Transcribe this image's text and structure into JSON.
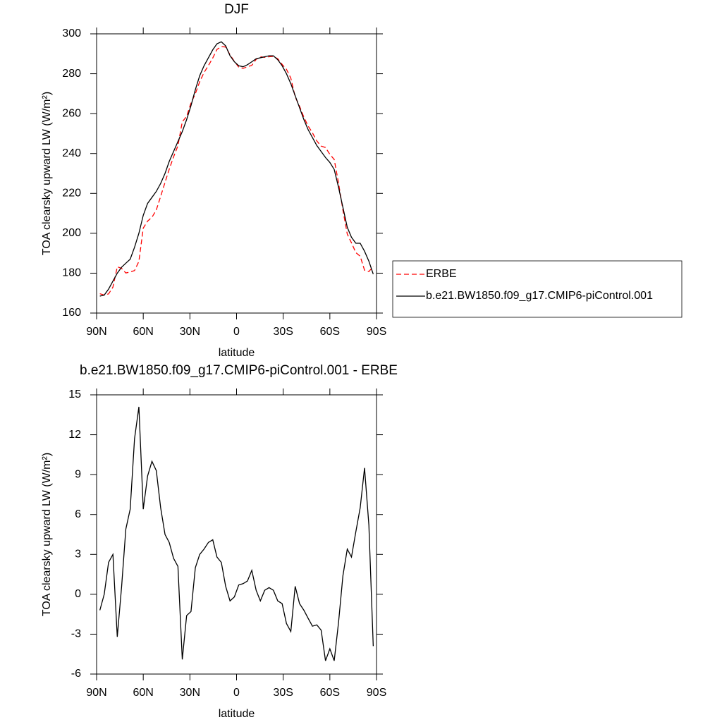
{
  "chart_data": [
    {
      "type": "line",
      "title": "DJF",
      "xlabel": "latitude",
      "ylabel": "TOA clearsky upward LW (W/m²)",
      "x": [
        87.9,
        85.1,
        82.3,
        79.5,
        76.7,
        73.9,
        71.2,
        68.4,
        65.6,
        62.8,
        60.0,
        57.2,
        54.4,
        51.6,
        48.8,
        46.0,
        43.3,
        40.5,
        37.7,
        34.9,
        32.1,
        29.3,
        26.5,
        23.7,
        20.9,
        18.1,
        15.3,
        12.6,
        9.8,
        7.0,
        4.2,
        1.4,
        -1.4,
        -4.2,
        -7.0,
        -9.8,
        -12.6,
        -15.3,
        -18.1,
        -20.9,
        -23.7,
        -26.5,
        -29.3,
        -32.1,
        -34.9,
        -37.7,
        -40.5,
        -43.3,
        -46.0,
        -48.8,
        -51.6,
        -54.4,
        -57.2,
        -60.0,
        -62.8,
        -65.6,
        -68.4,
        -71.2,
        -73.9,
        -76.7,
        -79.5,
        -82.3,
        -85.1,
        -87.9
      ],
      "series": [
        {
          "name": "ERBE",
          "color": "#ff0000",
          "style": "dashed",
          "values": [
            169.7,
            169.0,
            169.6,
            173.0,
            183.2,
            182.4,
            180.1,
            180.6,
            181.3,
            185.9,
            202.6,
            206.1,
            208.0,
            211.7,
            218.5,
            225.5,
            232.1,
            238.3,
            243.9,
            255.9,
            258.6,
            265.3,
            270.0,
            276.0,
            280.6,
            284.1,
            287.9,
            292.2,
            293.6,
            293.4,
            289.5,
            286.2,
            283.3,
            282.7,
            283.5,
            284.2,
            287.2,
            288.5,
            288.2,
            288.5,
            288.7,
            287.5,
            284.7,
            282.2,
            277.8,
            268.4,
            263.7,
            258.2,
            253.8,
            250.4,
            246.3,
            243.7,
            243.0,
            239.6,
            237.0,
            225.1,
            211.6,
            199.6,
            195.2,
            190.3,
            188.5,
            181.5,
            180.8,
            183.4
          ]
        },
        {
          "name": "b.e21.BW1850.f09_g17.CMIP6-piControl.001",
          "color": "#000000",
          "style": "solid",
          "values": [
            168.5,
            169,
            172,
            176,
            180,
            183,
            185,
            187,
            193,
            200,
            209,
            215,
            218,
            221,
            225,
            230,
            236,
            241,
            246,
            251,
            257,
            264,
            272,
            279,
            284,
            288,
            292,
            295,
            296,
            294,
            289,
            286,
            284,
            283.5,
            284.5,
            286,
            287.5,
            288,
            288.5,
            289,
            289,
            287,
            284,
            280,
            275,
            269,
            263,
            257,
            252,
            248,
            244,
            241,
            238,
            235.5,
            232,
            223,
            213,
            203,
            198,
            195,
            195,
            191,
            186,
            179.5
          ]
        }
      ],
      "xlim": [
        90,
        -90
      ],
      "xticks": [
        {
          "value": 90,
          "label": "90N"
        },
        {
          "value": 60,
          "label": "60N"
        },
        {
          "value": 30,
          "label": "30N"
        },
        0,
        {
          "value": -30,
          "label": "30S"
        },
        {
          "value": -60,
          "label": "60S"
        },
        {
          "value": -90,
          "label": "90S"
        }
      ],
      "ylim": [
        160,
        300
      ],
      "yticks": [
        160,
        180,
        200,
        220,
        240,
        260,
        280,
        300
      ],
      "legend": "right"
    },
    {
      "type": "line",
      "title": "b.e21.BW1850.f09_g17.CMIP6-piControl.001 - ERBE",
      "xlabel": "latitude",
      "ylabel": "TOA clearsky upward LW (W/m²)",
      "x": [
        87.9,
        85.1,
        82.3,
        79.5,
        76.7,
        73.9,
        71.2,
        68.4,
        65.6,
        62.8,
        60.0,
        57.2,
        54.4,
        51.6,
        48.8,
        46.0,
        43.3,
        40.5,
        37.7,
        34.9,
        32.1,
        29.3,
        26.5,
        23.7,
        20.9,
        18.1,
        15.3,
        12.6,
        9.8,
        7.0,
        4.2,
        1.4,
        -1.4,
        -4.2,
        -7.0,
        -9.8,
        -12.6,
        -15.3,
        -18.1,
        -20.9,
        -23.7,
        -26.5,
        -29.3,
        -32.1,
        -34.9,
        -37.7,
        -40.5,
        -43.3,
        -46.0,
        -48.8,
        -51.6,
        -54.4,
        -57.2,
        -60.0,
        -62.8,
        -65.6,
        -68.4,
        -71.2,
        -73.9,
        -76.7,
        -79.5,
        -82.3,
        -85.1,
        -87.9
      ],
      "values": [
        -1.2,
        0,
        2.4,
        3.0,
        -3.2,
        0.6,
        4.9,
        6.4,
        11.7,
        14.1,
        6.4,
        8.9,
        10.0,
        9.3,
        6.5,
        4.5,
        3.9,
        2.7,
        2.1,
        -4.9,
        -1.6,
        -1.3,
        2.0,
        3.0,
        3.4,
        3.9,
        4.1,
        2.8,
        2.4,
        0.6,
        -0.5,
        -0.2,
        0.7,
        0.8,
        1.0,
        1.8,
        0.3,
        -0.5,
        0.3,
        0.5,
        0.3,
        -0.5,
        -0.7,
        -2.2,
        -2.8,
        0.6,
        -0.7,
        -1.2,
        -1.8,
        -2.4,
        -2.3,
        -2.7,
        -5.0,
        -4.1,
        -5.0,
        -2.1,
        1.4,
        3.4,
        2.8,
        4.7,
        6.5,
        9.5,
        5.2,
        -3.9
      ],
      "color": "#000000",
      "xlim": [
        90,
        -90
      ],
      "xticks": [
        {
          "value": 90,
          "label": "90N"
        },
        {
          "value": 60,
          "label": "60N"
        },
        {
          "value": 30,
          "label": "30N"
        },
        0,
        {
          "value": -30,
          "label": "30S"
        },
        {
          "value": -60,
          "label": "60S"
        },
        {
          "value": -90,
          "label": "90S"
        }
      ],
      "ylim": [
        -6,
        15
      ],
      "yticks": [
        -6,
        -3,
        0,
        3,
        6,
        9,
        12,
        15
      ]
    }
  ]
}
